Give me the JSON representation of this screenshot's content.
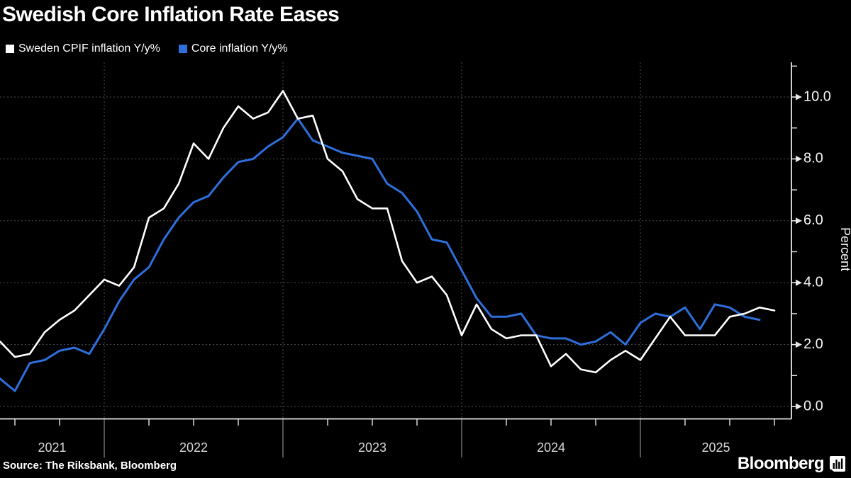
{
  "title": "Swedish Core Inflation Rate Eases",
  "legend": [
    {
      "label": "Sweden CPIF inflation Y/y%",
      "color": "#ffffff"
    },
    {
      "label": "Core inflation Y/y%",
      "color": "#2e6fdb"
    }
  ],
  "source_note": "Source: The Riksbank, Bloomberg",
  "logo_text": "Bloomberg",
  "colors": {
    "background": "#000000",
    "cpif_line": "#ffffff",
    "core_line": "#2e6fdb",
    "gridline": "#4f4f4f",
    "axis": "#e8e8e8",
    "year_label": "#d6d6d6",
    "tick_label": "#f5f5f5",
    "year_separator": "#a8a8a8"
  },
  "chart_data": {
    "type": "line",
    "title": "Swedish Core Inflation Rate Eases",
    "ylabel": "Percent",
    "ylim": [
      -0.6,
      11.1
    ],
    "grid": "dashed horizontal at 2.0 steps, dashed vertical at year boundaries",
    "legend_position": "top-left above plot",
    "y_ticks": {
      "values": [
        0,
        2,
        4,
        6,
        8,
        10
      ],
      "labels": [
        "0.0",
        "2.0",
        "4.0",
        "6.0",
        "8.0",
        "10.0"
      ]
    },
    "y_minor_ticks": [
      1,
      3,
      5,
      7,
      9,
      11
    ],
    "x_axis": {
      "year_labels": [
        "2021",
        "2022",
        "2023",
        "2024",
        "2025"
      ],
      "first_point_date": "2021-06-01",
      "months_per_point": 1,
      "year_boundary_month_index": [
        7,
        19,
        31,
        43
      ],
      "quarter_tick_month_index": [
        1,
        4,
        10,
        13,
        16,
        22,
        25,
        28,
        34,
        37,
        40,
        46,
        49,
        52
      ],
      "last_visible_month_index": 53.14
    },
    "series": [
      {
        "name": "Sweden CPIF inflation Y/y%",
        "color": "#ffffff",
        "width": 2.6,
        "months": "May 2021 - Sep 2025, each value plotted at the following month start",
        "values": [
          2.1,
          1.6,
          1.7,
          2.4,
          2.8,
          3.1,
          3.6,
          4.1,
          3.9,
          4.5,
          6.1,
          6.4,
          7.2,
          8.5,
          8.0,
          9.0,
          9.7,
          9.3,
          9.5,
          10.2,
          9.3,
          9.4,
          8.0,
          7.6,
          6.7,
          6.4,
          6.4,
          4.7,
          4.0,
          4.2,
          3.6,
          2.3,
          3.3,
          2.5,
          2.2,
          2.3,
          2.3,
          1.3,
          1.7,
          1.2,
          1.1,
          1.5,
          1.8,
          1.5,
          2.2,
          2.9,
          2.3,
          2.3,
          2.3,
          2.9,
          3.0,
          3.2,
          3.1
        ]
      },
      {
        "name": "Core inflation Y/y%",
        "color": "#2e6fdb",
        "width": 3,
        "months": "Jun 2021 - Sep 2025, plotted at month start",
        "values": [
          0.9,
          0.5,
          1.4,
          1.5,
          1.8,
          1.9,
          1.7,
          2.5,
          3.4,
          4.1,
          4.5,
          5.4,
          6.1,
          6.6,
          6.8,
          7.4,
          7.9,
          8.0,
          8.4,
          8.7,
          9.3,
          8.6,
          8.4,
          8.2,
          8.1,
          8.0,
          7.2,
          6.9,
          6.3,
          5.4,
          5.3,
          4.4,
          3.5,
          2.9,
          2.9,
          3.0,
          2.3,
          2.2,
          2.2,
          2.0,
          2.1,
          2.4,
          2.0,
          2.7,
          3.0,
          2.9,
          3.2,
          2.5,
          3.3,
          3.2,
          2.9,
          2.8
        ]
      }
    ]
  }
}
